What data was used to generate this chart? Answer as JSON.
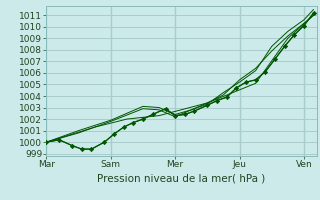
{
  "title": "",
  "xlabel": "Pression niveau de la mer( hPa )",
  "background_color": "#cceaea",
  "grid_color": "#aacccc",
  "line_color": "#005500",
  "ylim": [
    998.8,
    1011.8
  ],
  "yticks": [
    999,
    1000,
    1001,
    1002,
    1003,
    1004,
    1005,
    1006,
    1007,
    1008,
    1009,
    1010,
    1011
  ],
  "xtick_labels": [
    "Mar",
    "Sam",
    "Mer",
    "Jeu",
    "Ven"
  ],
  "xtick_positions": [
    0,
    2,
    4,
    6,
    8
  ],
  "xlim": [
    0,
    8.4
  ],
  "lines": [
    {
      "x": [
        0.0,
        0.4,
        0.8,
        1.1,
        1.4,
        1.8,
        2.1,
        2.4,
        2.7,
        3.0,
        3.3,
        3.7,
        4.0,
        4.3,
        4.6,
        5.0,
        5.3,
        5.6,
        5.9,
        6.2,
        6.5,
        6.8,
        7.1,
        7.4,
        7.7,
        8.0,
        8.3
      ],
      "y": [
        1000.0,
        1000.2,
        999.7,
        999.4,
        999.4,
        1000.0,
        1000.7,
        1001.3,
        1001.7,
        1002.0,
        1002.4,
        1002.9,
        1002.3,
        1002.4,
        1002.7,
        1003.2,
        1003.6,
        1003.9,
        1004.7,
        1005.2,
        1005.4,
        1006.1,
        1007.2,
        1008.3,
        1009.3,
        1010.1,
        1011.2
      ]
    },
    {
      "x": [
        0.0,
        1.0,
        2.0,
        3.0,
        3.5,
        4.0,
        4.5,
        5.0,
        5.5,
        6.0,
        6.5,
        7.0,
        7.5,
        8.0,
        8.3
      ],
      "y": [
        1000.0,
        1001.0,
        1001.9,
        1003.1,
        1003.0,
        1002.4,
        1002.8,
        1003.4,
        1004.1,
        1005.4,
        1006.4,
        1007.9,
        1009.2,
        1010.3,
        1011.0
      ]
    },
    {
      "x": [
        0.0,
        1.0,
        2.0,
        3.0,
        3.5,
        4.0,
        4.5,
        5.0,
        5.5,
        6.0,
        6.5,
        7.0,
        7.5,
        8.0,
        8.3
      ],
      "y": [
        1000.0,
        1000.8,
        1001.8,
        1002.9,
        1002.8,
        1002.2,
        1002.8,
        1003.3,
        1004.3,
        1005.2,
        1006.2,
        1008.3,
        1009.6,
        1010.6,
        1011.5
      ]
    },
    {
      "x": [
        0.0,
        1.5,
        2.5,
        3.5,
        5.0,
        6.5,
        7.5,
        8.3
      ],
      "y": [
        1000.0,
        1001.3,
        1002.0,
        1002.3,
        1003.4,
        1005.1,
        1009.0,
        1011.0
      ]
    }
  ],
  "marker_line": {
    "x": [
      0.0,
      0.4,
      0.8,
      1.1,
      1.4,
      1.8,
      2.1,
      2.4,
      2.7,
      3.0,
      3.3,
      3.7,
      4.0,
      4.3,
      4.6,
      5.0,
      5.3,
      5.6,
      5.9,
      6.2,
      6.5,
      6.8,
      7.1,
      7.4,
      7.7,
      8.0,
      8.3
    ],
    "y": [
      1000.0,
      1000.2,
      999.7,
      999.4,
      999.4,
      1000.0,
      1000.7,
      1001.3,
      1001.7,
      1002.0,
      1002.4,
      1002.9,
      1002.3,
      1002.4,
      1002.7,
      1003.2,
      1003.6,
      1003.9,
      1004.7,
      1005.2,
      1005.4,
      1006.1,
      1007.2,
      1008.3,
      1009.3,
      1010.1,
      1011.2
    ]
  },
  "vline_positions": [
    0,
    2,
    4,
    6,
    8
  ],
  "figsize": [
    3.2,
    2.0
  ],
  "dpi": 100
}
